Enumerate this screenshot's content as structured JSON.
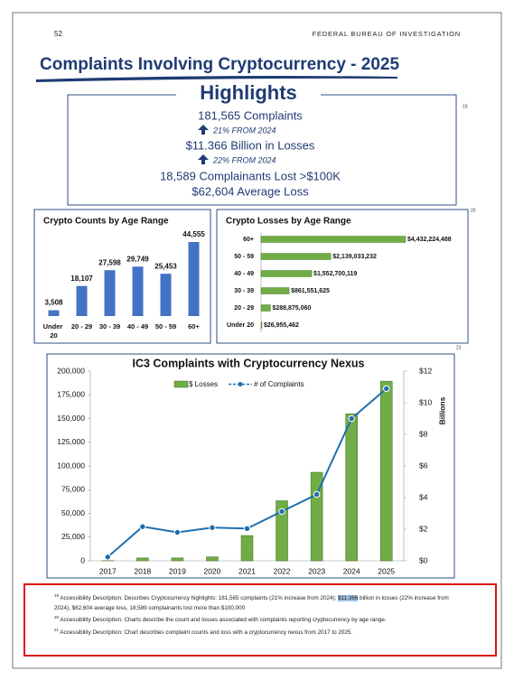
{
  "header": {
    "page_number": "52",
    "organization": "FEDERAL BUREAU OF INVESTIGATION"
  },
  "title": "Complaints Involving Cryptocurrency - 2025",
  "highlights": {
    "title": "Highlights",
    "footnote_ref": "19",
    "lines": [
      "181,565 Complaints",
      "21% FROM 2024",
      "$11.366 Billion in Losses",
      "22% FROM 2024",
      "18,589 Complainants Lost >$100K",
      "$62,604 Average Loss"
    ]
  },
  "chart_data": [
    {
      "type": "bar",
      "title": "Crypto Counts by Age Range",
      "categories": [
        "Under 20",
        "20 - 29",
        "30 - 39",
        "40 - 49",
        "50 - 59",
        "60+"
      ],
      "values": [
        3508,
        18107,
        27598,
        29749,
        25453,
        44555
      ],
      "value_labels": [
        "3,508",
        "18,107",
        "27,598",
        "29,749",
        "25,453",
        "44,555"
      ],
      "color": "#4472c4"
    },
    {
      "type": "hbar",
      "title": "Crypto Losses by Age Range",
      "footnote_ref": "20",
      "categories": [
        "60+",
        "50 - 59",
        "40 - 49",
        "30 - 39",
        "20 - 29",
        "Under 20"
      ],
      "values": [
        4432224488,
        2139033232,
        1552700119,
        861551625,
        288875060,
        26955462
      ],
      "value_labels": [
        "$4,432,224,488",
        "$2,139,033,232",
        "$1,552,700,119",
        "$861,551,625",
        "$288,875,060",
        "$26,955,462"
      ],
      "color": "#70ad47"
    },
    {
      "type": "combo",
      "title": "IC3 Complaints with Cryptocurrency Nexus",
      "footnote_ref": "21",
      "categories": [
        "2017",
        "2018",
        "2019",
        "2020",
        "2021",
        "2022",
        "2023",
        "2024",
        "2025"
      ],
      "series": [
        {
          "name": "$ Losses",
          "type": "bar",
          "axis": "y2",
          "color": "#70ad47",
          "values": [
            0.01,
            0.18,
            0.18,
            0.25,
            1.6,
            3.8,
            5.6,
            9.3,
            11.366
          ]
        },
        {
          "name": "# of Complaints",
          "type": "line",
          "color": "#1f6fad",
          "values": [
            4000,
            36000,
            30000,
            35000,
            34000,
            52000,
            70000,
            150000,
            181565
          ]
        }
      ],
      "ylim": [
        0,
        200000
      ],
      "yticks": [
        0,
        {
          "value": 25000,
          "label": "25,000"
        },
        {
          "value": 50000,
          "label": "50,000"
        },
        {
          "value": 75000,
          "label": "75,000"
        },
        {
          "value": 100000,
          "label": "100,000"
        },
        {
          "value": 125000,
          "label": "125,000"
        },
        {
          "value": 150000,
          "label": "150,000"
        },
        {
          "value": 175000,
          "label": "175,000"
        },
        {
          "value": 200000,
          "label": "200,000"
        }
      ],
      "y2lim": [
        0,
        12
      ],
      "y2ticks": [
        {
          "value": 0,
          "label": "$0"
        },
        {
          "value": 2,
          "label": "$2"
        },
        {
          "value": 4,
          "label": "$4"
        },
        {
          "value": 6,
          "label": "$6"
        },
        {
          "value": 8,
          "label": "$8"
        },
        {
          "value": 10,
          "label": "$10"
        },
        {
          "value": 12,
          "label": "$12"
        }
      ],
      "y2_label": "Billions",
      "legend": "top"
    }
  ],
  "footnotes": [
    {
      "ref": "19",
      "parts": [
        "Accessibility Description: Describes Cryptocurrency highlights: 181,565 complaints (21% increase from 2024); ",
        "$11.366",
        " billion in losses (22% increase from 2024), $62,604 average loss, 18,589 complainants lost more than $100,000"
      ]
    },
    {
      "ref": "20",
      "parts": [
        "Accessibility Description: Charts describe the count and losses associated with complaints reporting cryptocurrency by age range."
      ]
    },
    {
      "ref": "21",
      "parts": [
        "Accessibility Description: Chart describes complaint counts and loss with a cryptocurrency nexus from 2017 to 2025."
      ]
    }
  ]
}
